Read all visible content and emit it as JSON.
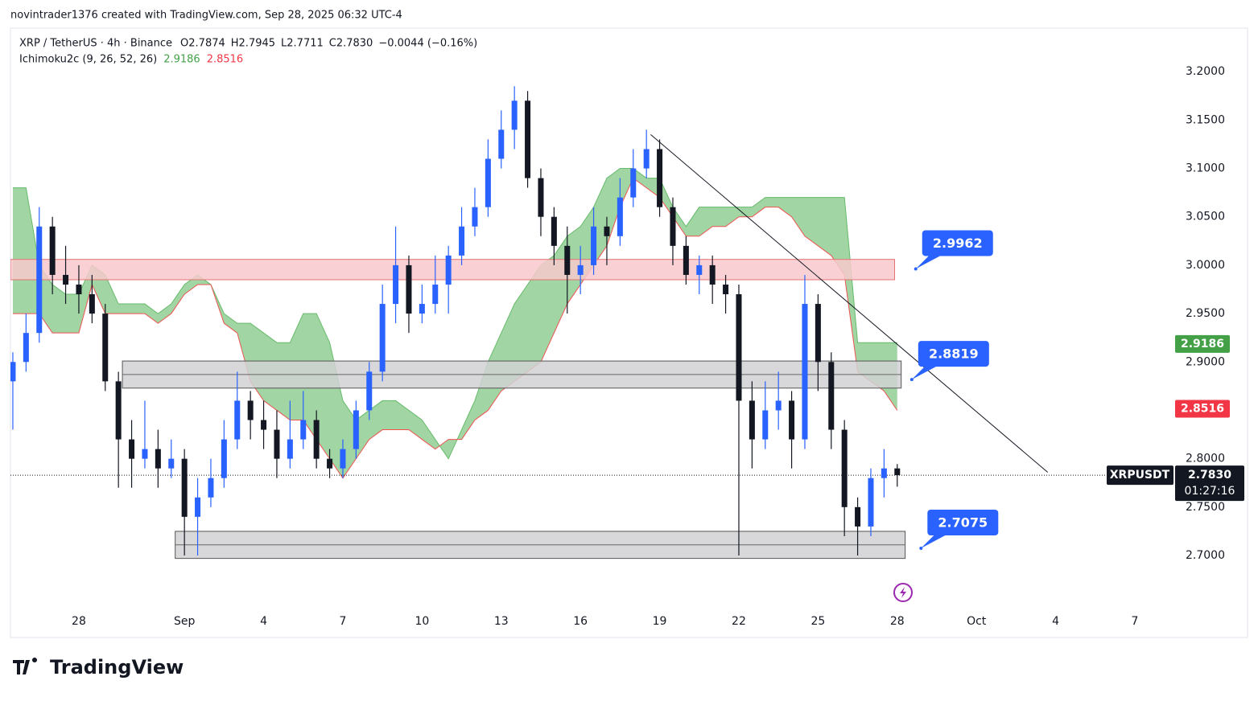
{
  "header": {
    "author_line": "novintrader1376 created with TradingView.com, Sep 28, 2025 06:32 UTC-4"
  },
  "footer": {
    "brand": "TradingView"
  },
  "chart_data": {
    "type": "candlestick",
    "symbol_line": "XRP / TetherUS · 4h · Binance",
    "ohlc_line": [
      "O2.7874",
      "H2.7945",
      "L2.7711",
      "C2.7830",
      "−0.0044 (−0.16%)"
    ],
    "indicator": {
      "name": "Ichimoku2c (9, 26, 52, 26)",
      "values": [
        2.9186,
        2.8516
      ],
      "colors": [
        "#43a047",
        "#f23645"
      ]
    },
    "x": [
      -2.5,
      -2,
      -1.5,
      -1,
      -0.5,
      0,
      0.5,
      1,
      1.5,
      2,
      2.5,
      3,
      3.5,
      4,
      4.5,
      5,
      5.5,
      6,
      6.5,
      7,
      7.5,
      8,
      8.5,
      9,
      9.5,
      10,
      10.5,
      11,
      11.5,
      12,
      12.5,
      13,
      13.5,
      14,
      14.5,
      15,
      15.5,
      16,
      16.5,
      17,
      17.5,
      18,
      18.5,
      19,
      19.5,
      20,
      20.5,
      21,
      21.5,
      22,
      22.5,
      23,
      23.5,
      24,
      24.5,
      25,
      25.5,
      26,
      26.5,
      27,
      27.5,
      28,
      28.5,
      29,
      29.5,
      30,
      30.5,
      31
    ],
    "open": [
      2.88,
      2.9,
      2.93,
      3.04,
      2.99,
      2.98,
      2.97,
      2.95,
      2.88,
      2.82,
      2.8,
      2.81,
      2.79,
      2.8,
      2.74,
      2.76,
      2.78,
      2.82,
      2.86,
      2.84,
      2.83,
      2.8,
      2.82,
      2.84,
      2.8,
      2.79,
      2.81,
      2.85,
      2.89,
      2.96,
      3.0,
      2.95,
      2.96,
      2.98,
      3.01,
      3.04,
      3.06,
      3.11,
      3.14,
      3.17,
      3.09,
      3.05,
      3.02,
      2.99,
      3.0,
      3.04,
      3.03,
      3.07,
      3.1,
      3.12,
      3.06,
      3.02,
      2.99,
      3.0,
      2.98,
      2.97,
      2.86,
      2.82,
      2.85,
      2.86,
      2.82,
      2.96,
      2.9,
      2.83,
      2.75,
      2.73,
      2.78,
      2.79
    ],
    "high": [
      2.91,
      2.95,
      3.06,
      3.05,
      3.02,
      3.0,
      2.99,
      2.96,
      2.89,
      2.84,
      2.86,
      2.83,
      2.82,
      2.81,
      2.78,
      2.8,
      2.84,
      2.89,
      2.87,
      2.86,
      2.85,
      2.86,
      2.87,
      2.85,
      2.81,
      2.82,
      2.86,
      2.9,
      2.98,
      3.04,
      3.01,
      2.98,
      3.01,
      3.02,
      3.06,
      3.08,
      3.13,
      3.16,
      3.185,
      3.18,
      3.1,
      3.06,
      3.04,
      3.02,
      3.06,
      3.05,
      3.09,
      3.12,
      3.14,
      3.13,
      3.07,
      3.03,
      3.01,
      3.01,
      2.99,
      2.98,
      2.88,
      2.88,
      2.89,
      2.87,
      2.99,
      2.97,
      2.91,
      2.84,
      2.76,
      2.79,
      2.81,
      2.7945
    ],
    "low": [
      2.83,
      2.89,
      2.92,
      2.97,
      2.96,
      2.95,
      2.94,
      2.87,
      2.77,
      2.77,
      2.79,
      2.77,
      2.78,
      2.7,
      2.7,
      2.75,
      2.77,
      2.81,
      2.82,
      2.81,
      2.78,
      2.79,
      2.81,
      2.79,
      2.78,
      2.78,
      2.8,
      2.84,
      2.88,
      2.94,
      2.93,
      2.94,
      2.95,
      2.95,
      3.0,
      3.03,
      3.05,
      3.1,
      3.12,
      3.08,
      3.03,
      3.0,
      2.95,
      2.97,
      2.99,
      3.0,
      3.02,
      3.06,
      3.09,
      3.05,
      3.0,
      2.98,
      2.97,
      2.96,
      2.95,
      2.7,
      2.79,
      2.81,
      2.83,
      2.79,
      2.81,
      2.87,
      2.81,
      2.72,
      2.7,
      2.72,
      2.76,
      2.7711
    ],
    "close": [
      2.9,
      2.93,
      3.04,
      2.99,
      2.98,
      2.97,
      2.95,
      2.88,
      2.82,
      2.8,
      2.81,
      2.79,
      2.8,
      2.74,
      2.76,
      2.78,
      2.82,
      2.86,
      2.84,
      2.83,
      2.8,
      2.82,
      2.84,
      2.8,
      2.79,
      2.81,
      2.85,
      2.89,
      2.96,
      3.0,
      2.95,
      2.96,
      2.98,
      3.01,
      3.04,
      3.06,
      3.11,
      3.14,
      3.17,
      3.09,
      3.05,
      3.02,
      2.99,
      3.0,
      3.04,
      3.03,
      3.07,
      3.1,
      3.12,
      3.06,
      3.02,
      2.99,
      3.0,
      2.98,
      2.97,
      2.86,
      2.82,
      2.85,
      2.86,
      2.82,
      2.96,
      2.9,
      2.83,
      2.75,
      2.73,
      2.78,
      2.79,
      2.783
    ],
    "span_a": [
      3.08,
      3.08,
      3.0,
      2.98,
      2.97,
      2.97,
      3.0,
      2.99,
      2.96,
      2.96,
      2.96,
      2.95,
      2.96,
      2.98,
      2.99,
      2.98,
      2.95,
      2.94,
      2.94,
      2.93,
      2.92,
      2.92,
      2.95,
      2.95,
      2.92,
      2.86,
      2.84,
      2.85,
      2.86,
      2.86,
      2.85,
      2.84,
      2.82,
      2.8,
      2.83,
      2.86,
      2.9,
      2.93,
      2.96,
      2.98,
      3.0,
      3.01,
      3.03,
      3.04,
      3.06,
      3.09,
      3.1,
      3.1,
      3.09,
      3.09,
      3.06,
      3.04,
      3.06,
      3.06,
      3.06,
      3.06,
      3.06,
      3.07,
      3.07,
      3.07,
      3.07,
      3.07,
      3.07,
      3.07,
      2.92,
      2.92,
      2.92,
      2.92
    ],
    "span_b": [
      2.95,
      2.95,
      2.95,
      2.93,
      2.93,
      2.93,
      2.98,
      2.95,
      2.95,
      2.95,
      2.95,
      2.94,
      2.95,
      2.97,
      2.98,
      2.98,
      2.94,
      2.93,
      2.88,
      2.86,
      2.85,
      2.84,
      2.84,
      2.82,
      2.8,
      2.78,
      2.8,
      2.82,
      2.83,
      2.83,
      2.83,
      2.82,
      2.81,
      2.82,
      2.82,
      2.84,
      2.85,
      2.87,
      2.88,
      2.89,
      2.9,
      2.93,
      2.96,
      2.98,
      3.0,
      3.02,
      3.06,
      3.09,
      3.08,
      3.07,
      3.05,
      3.03,
      3.03,
      3.04,
      3.04,
      3.05,
      3.05,
      3.06,
      3.06,
      3.05,
      3.03,
      3.02,
      3.01,
      2.99,
      2.89,
      2.88,
      2.87,
      2.85
    ],
    "up_color": "#2962ff",
    "down_color": "#131722",
    "cloud_color": "#81c784",
    "span_a_color": "#66bb6a",
    "span_b_color": "#ef5350",
    "xlim": [
      -2.59,
      41.22
    ],
    "xticks": [
      {
        "value": 0,
        "label": "28"
      },
      {
        "value": 4,
        "label": "Sep"
      },
      {
        "value": 7,
        "label": "4"
      },
      {
        "value": 10,
        "label": "7"
      },
      {
        "value": 13,
        "label": "10"
      },
      {
        "value": 16,
        "label": "13"
      },
      {
        "value": 19,
        "label": "16"
      },
      {
        "value": 22,
        "label": "19"
      },
      {
        "value": 25,
        "label": "22"
      },
      {
        "value": 28,
        "label": "25"
      },
      {
        "value": 31,
        "label": "28"
      },
      {
        "value": 34,
        "label": "Oct"
      },
      {
        "value": 37,
        "label": "4"
      },
      {
        "value": 40,
        "label": "7"
      }
    ],
    "ylim": [
      2.651,
      3.245
    ],
    "yticks": [
      {
        "value": 2.7,
        "label": "2.7000"
      },
      {
        "value": 2.75,
        "label": "2.7500"
      },
      {
        "value": 2.8,
        "label": "2.8000"
      },
      {
        "value": 2.85,
        "label": "2.8500"
      },
      {
        "value": 2.9,
        "label": "2.9000"
      },
      {
        "value": 2.95,
        "label": "2.9500"
      },
      {
        "value": 3.0,
        "label": "3.0000"
      },
      {
        "value": 3.05,
        "label": "3.0500"
      },
      {
        "value": 3.1,
        "label": "3.1000"
      },
      {
        "value": 3.15,
        "label": "3.1500"
      },
      {
        "value": 3.2,
        "label": "3.2000"
      }
    ],
    "zones": [
      {
        "low": 2.985,
        "high": 3.006,
        "from": -2.59,
        "to": 30.9,
        "color": "#f8c9cc"
      },
      {
        "low": 2.873,
        "high": 2.901,
        "from": 1.65,
        "to": 31.15,
        "color": "#d1d1d4"
      },
      {
        "low": 2.697,
        "high": 2.725,
        "from": 3.65,
        "to": 31.3,
        "color": "#d1d1d4"
      }
    ],
    "trendline": {
      "x": [
        21.66,
        36.7
      ],
      "y": [
        3.135,
        2.786
      ]
    },
    "callouts": [
      {
        "value": 2.9962,
        "x": 31.7
      },
      {
        "value": 2.8819,
        "x": 31.55
      },
      {
        "value": 2.7075,
        "x": 31.9
      }
    ],
    "last_price": {
      "symbol": "XRPUSDT",
      "value": 2.783,
      "label": "2.7830",
      "countdown": "01:27:16"
    }
  }
}
